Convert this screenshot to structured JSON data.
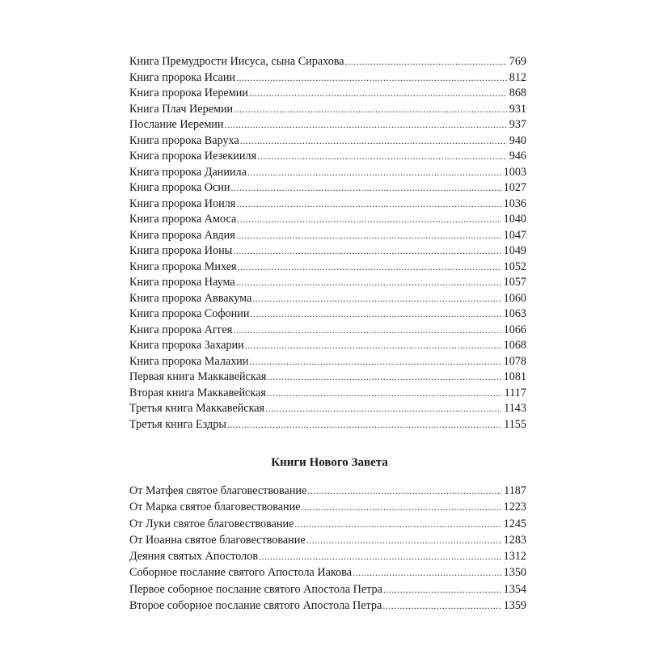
{
  "old_testament_continued": [
    {
      "title": "Книга Премудрости Иисуса, сына Сирахова",
      "page": "769"
    },
    {
      "title": "Книга пророка Исаии",
      "page": "812"
    },
    {
      "title": "Книга пророка Иеремии",
      "page": "868"
    },
    {
      "title": "Книга Плач Иеремии",
      "page": "931"
    },
    {
      "title": "Послание Иеремии",
      "page": "937"
    },
    {
      "title": "Книга пророка Варуха",
      "page": "940"
    },
    {
      "title": "Книга пророка Иезекииля",
      "page": "946"
    },
    {
      "title": "Книга пророка Даниила",
      "page": "1003"
    },
    {
      "title": "Книга пророка Осии",
      "page": "1027"
    },
    {
      "title": "Книга пророка Иоиля",
      "page": "1036"
    },
    {
      "title": "Книга пророка Амоса",
      "page": "1040"
    },
    {
      "title": "Книга пророка Авдия",
      "page": "1047"
    },
    {
      "title": "Книга пророка Ионы",
      "page": "1049"
    },
    {
      "title": "Книга пророка Михея",
      "page": "1052"
    },
    {
      "title": "Книга пророка Наума",
      "page": "1057"
    },
    {
      "title": "Книга пророка Аввакума",
      "page": "1060"
    },
    {
      "title": "Книга пророка Софонии",
      "page": "1063"
    },
    {
      "title": "Книга пророка Аггея",
      "page": "1066"
    },
    {
      "title": "Книга пророка Захарии",
      "page": "1068"
    },
    {
      "title": "Книга пророка Малахии",
      "page": "1078"
    },
    {
      "title": "Первая книга Маккавейская",
      "page": "1081"
    },
    {
      "title": "Вторая книга Маккавейская",
      "page": "1117"
    },
    {
      "title": "Третья книга Маккавейская",
      "page": "1143"
    },
    {
      "title": "Третья книга Ездры",
      "page": "1155"
    }
  ],
  "new_testament": {
    "heading": "Книги Нового Завета",
    "items": [
      {
        "title": "От Матфея святое благовествование",
        "page": "1187"
      },
      {
        "title": "От Марка святое благовествование",
        "page": "1223"
      },
      {
        "title": "От Луки святое благовествование",
        "page": "1245"
      },
      {
        "title": "От Иоанна святое благовествование",
        "page": "1283"
      },
      {
        "title": "Деяния святых Апостолов",
        "page": "1312"
      },
      {
        "title": "Соборное послание святого Апостола Иакова",
        "page": "1350"
      },
      {
        "title": "Первое соборное послание святого Апостола Петра",
        "page": "1354"
      },
      {
        "title": "Второе соборное послание святого Апостола Петра",
        "page": "1359"
      }
    ]
  }
}
